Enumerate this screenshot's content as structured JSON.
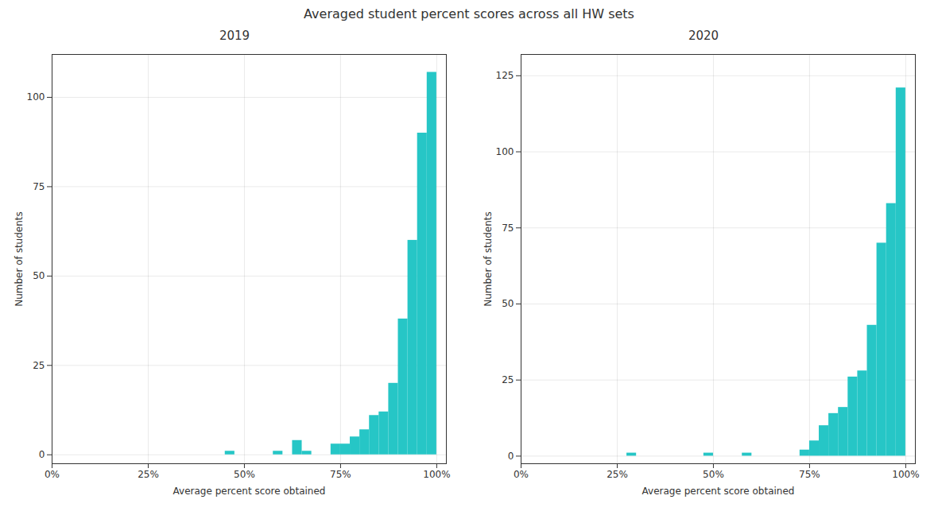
{
  "title": "Averaged student percent scores across all HW sets",
  "chart_data": [
    {
      "type": "histogram",
      "title": "2019",
      "xlabel": "Average percent score obtained",
      "ylabel": "Number of students",
      "bins": [
        0.45,
        0.475,
        0.5,
        0.525,
        0.55,
        0.575,
        0.6,
        0.625,
        0.65,
        0.675,
        0.7,
        0.725,
        0.75,
        0.775,
        0.8,
        0.825,
        0.85,
        0.875,
        0.9,
        0.925,
        0.95,
        0.975,
        1.0
      ],
      "values": [
        1,
        0,
        0,
        0,
        0,
        1,
        0,
        4,
        1,
        0,
        0,
        3,
        3,
        5,
        7,
        11,
        12,
        20,
        38,
        60,
        90,
        107
      ],
      "color": "#26C6C6",
      "xlim": [
        0.0,
        1.025
      ],
      "xticks": [
        {
          "value": 0.0,
          "label": "0%"
        },
        {
          "value": 0.25,
          "label": "25%"
        },
        {
          "value": 0.5,
          "label": "50%"
        },
        {
          "value": 0.75,
          "label": "75%"
        },
        {
          "value": 1.0,
          "label": "100%"
        }
      ],
      "ylim": [
        -2.5,
        112
      ],
      "yticks": [
        0,
        25,
        50,
        75,
        100
      ],
      "grid": true
    },
    {
      "type": "histogram",
      "title": "2020",
      "xlabel": "Average percent score obtained",
      "ylabel": "Number of students",
      "bins": [
        0.275,
        0.3,
        0.325,
        0.35,
        0.375,
        0.4,
        0.425,
        0.45,
        0.475,
        0.5,
        0.525,
        0.55,
        0.575,
        0.6,
        0.625,
        0.65,
        0.675,
        0.7,
        0.725,
        0.75,
        0.775,
        0.8,
        0.825,
        0.85,
        0.875,
        0.9,
        0.925,
        0.95,
        0.975,
        1.0
      ],
      "values": [
        1,
        0,
        0,
        0,
        0,
        0,
        0,
        0,
        1,
        0,
        0,
        0,
        1,
        0,
        0,
        0,
        0,
        0,
        2,
        5,
        10,
        14,
        16,
        26,
        28,
        43,
        70,
        83,
        121
      ],
      "color": "#26C6C6",
      "xlim": [
        0.0,
        1.025
      ],
      "xticks": [
        {
          "value": 0.0,
          "label": "0%"
        },
        {
          "value": 0.25,
          "label": "25%"
        },
        {
          "value": 0.5,
          "label": "50%"
        },
        {
          "value": 0.75,
          "label": "75%"
        },
        {
          "value": 1.0,
          "label": "100%"
        }
      ],
      "ylim": [
        -2.5,
        132
      ],
      "yticks": [
        0,
        25,
        50,
        75,
        100,
        125
      ],
      "grid": true
    }
  ]
}
